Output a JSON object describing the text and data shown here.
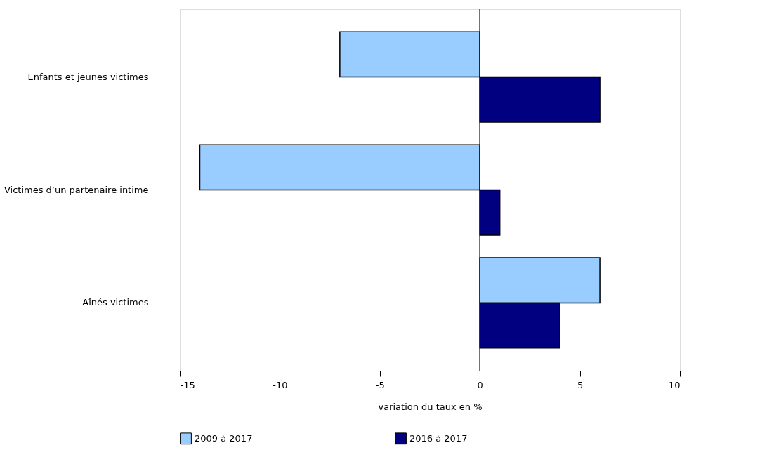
{
  "chart_data": {
    "type": "bar",
    "orientation": "horizontal",
    "xlabel": "variation du taux en %",
    "categories": [
      "Enfants et jeunes victimes",
      "Victimes d’un partenaire intime",
      "Aînés victimes"
    ],
    "series": [
      {
        "name": "2009 à 2017",
        "color": "#99ccff",
        "values": [
          -7,
          -14,
          6
        ]
      },
      {
        "name": "2016 à 2017",
        "color": "#000080",
        "values": [
          6,
          1,
          4
        ]
      }
    ],
    "xlim": [
      -15,
      10
    ],
    "xticks": [
      -15,
      -10,
      -5,
      0,
      5,
      10
    ],
    "grid": false,
    "legend": "bottom",
    "ref_lines": [
      {
        "axis": "x",
        "value": 0,
        "color": "#000000"
      }
    ]
  }
}
